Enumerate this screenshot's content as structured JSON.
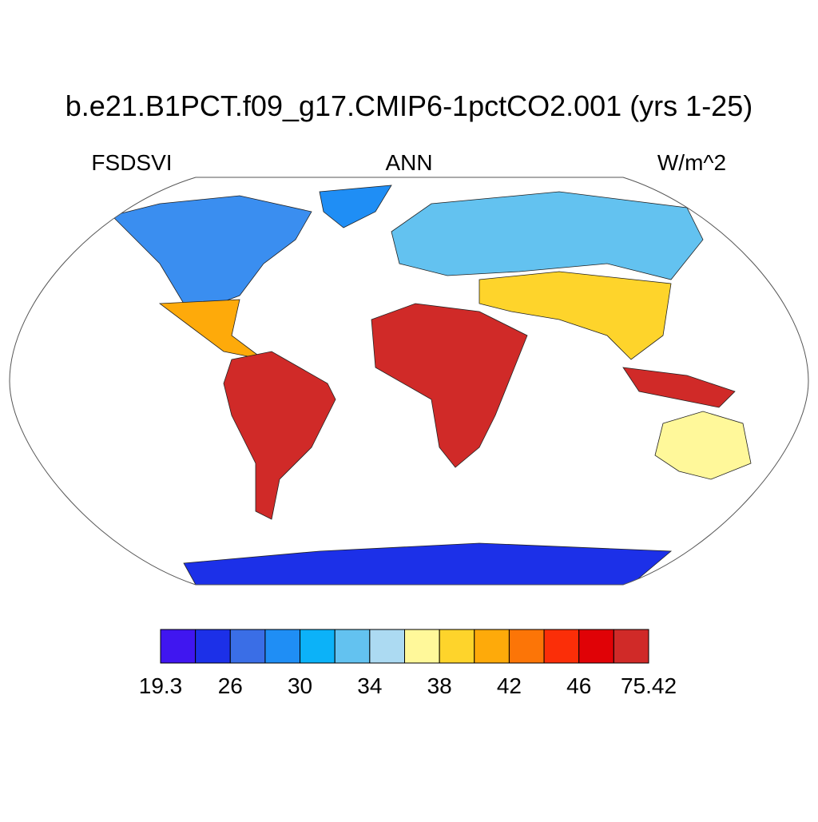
{
  "title": "b.e21.B1PCT.f09_g17.CMIP6-1pctCO2.001 (yrs 1-25)",
  "left_label": "FSDSVI",
  "center_label": "ANN",
  "right_label": "W/m^2",
  "colorbar": {
    "colors": [
      "#4016f0",
      "#1c30e8",
      "#3a6ee6",
      "#1f8ef5",
      "#0cb2f8",
      "#63c2f0",
      "#acdaf2",
      "#fff89a",
      "#fed42b",
      "#feaa0a",
      "#fc7507",
      "#fb2e08",
      "#e00206",
      "#d02a28"
    ],
    "tick_labels": [
      "19.3",
      "26",
      "30",
      "34",
      "38",
      "42",
      "46",
      "75.42"
    ]
  }
}
